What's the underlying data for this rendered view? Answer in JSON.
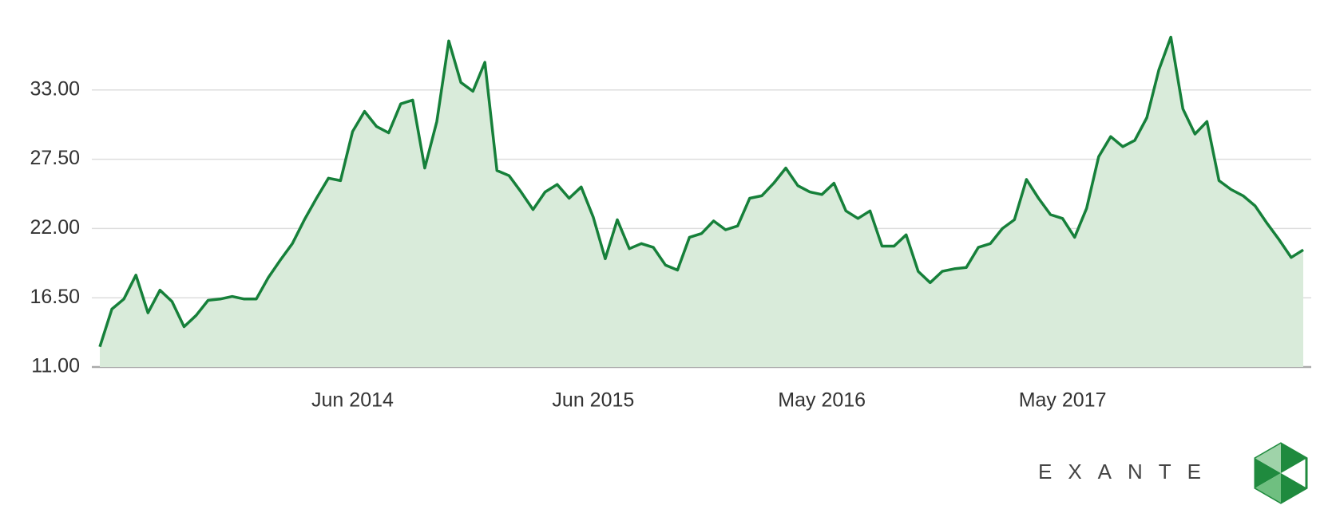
{
  "chart_data": {
    "type": "area",
    "categories": [
      null,
      null,
      null,
      null,
      null,
      null,
      null,
      null,
      null,
      null,
      null,
      null,
      null,
      null,
      null,
      null,
      null,
      null,
      null,
      null,
      null,
      "Jun 2014",
      null,
      null,
      null,
      null,
      null,
      null,
      null,
      null,
      null,
      null,
      null,
      null,
      null,
      null,
      null,
      null,
      null,
      null,
      null,
      "Jun 2015",
      null,
      null,
      null,
      null,
      null,
      null,
      null,
      null,
      null,
      null,
      null,
      null,
      null,
      null,
      null,
      null,
      null,
      null,
      "May 2016",
      null,
      null,
      null,
      null,
      null,
      null,
      null,
      null,
      null,
      null,
      null,
      null,
      null,
      null,
      null,
      null,
      null,
      null,
      null,
      "May 2017",
      null,
      null,
      null,
      null,
      null,
      null,
      null,
      null,
      null,
      null,
      null,
      null,
      null,
      null,
      null,
      null,
      null,
      null,
      null,
      null
    ],
    "values": [
      12.6,
      15.6,
      16.4,
      18.3,
      15.3,
      17.1,
      16.2,
      14.2,
      15.1,
      16.3,
      16.4,
      16.6,
      16.4,
      16.4,
      18.1,
      19.5,
      20.8,
      22.7,
      24.4,
      26.0,
      25.8,
      29.7,
      31.3,
      30.1,
      29.6,
      31.9,
      32.2,
      26.8,
      30.5,
      36.9,
      33.6,
      32.9,
      35.2,
      26.6,
      26.2,
      24.9,
      23.5,
      24.9,
      25.5,
      24.4,
      25.3,
      22.9,
      19.6,
      22.7,
      20.4,
      20.8,
      20.5,
      19.1,
      18.7,
      21.3,
      21.6,
      22.6,
      21.9,
      22.2,
      24.4,
      24.6,
      25.6,
      26.8,
      25.4,
      24.9,
      24.7,
      25.6,
      23.4,
      22.8,
      23.4,
      20.6,
      20.6,
      21.5,
      18.6,
      17.7,
      18.6,
      18.8,
      18.9,
      20.5,
      20.8,
      22.0,
      22.7,
      25.9,
      24.4,
      23.1,
      22.8,
      21.3,
      23.6,
      27.7,
      29.3,
      28.5,
      29.0,
      30.8,
      34.6,
      37.2,
      31.5,
      29.5,
      30.5,
      25.8,
      25.1,
      24.6,
      23.8,
      22.4,
      21.1,
      19.7,
      20.3
    ],
    "color": "#16803a",
    "fill_color": "#d9ebda",
    "ylim": [
      11,
      38.5
    ],
    "yticks": [
      {
        "value": 11,
        "label": "11.00"
      },
      {
        "value": 16.5,
        "label": "16.50"
      },
      {
        "value": 22,
        "label": "22.00"
      },
      {
        "value": 27.5,
        "label": "27.50"
      },
      {
        "value": 33,
        "label": "33.00"
      }
    ],
    "grid": true
  },
  "brand": "EXANTE"
}
